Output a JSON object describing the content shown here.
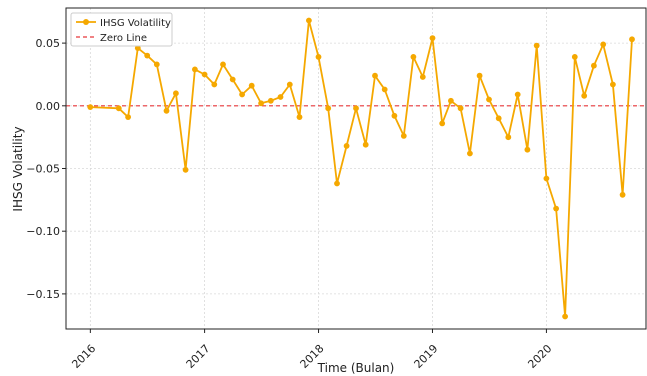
{
  "chart_data": {
    "type": "line",
    "title": "",
    "xlabel": "Time (Bulan)",
    "ylabel": "IHSG Volatility",
    "xlim": [
      "2015-10-15",
      "2020-11-15"
    ],
    "ylim": [
      -0.178,
      0.078
    ],
    "x_ticks": [
      "2016-01-01",
      "2017-01-01",
      "2018-01-01",
      "2019-01-01",
      "2020-01-01"
    ],
    "x_tick_labels": [
      "2016",
      "2017",
      "2018",
      "2019",
      "2020"
    ],
    "y_ticks": [
      0.05,
      0.0,
      -0.05,
      -0.1,
      -0.15
    ],
    "y_tick_labels": [
      "0.05",
      "0.00",
      "−0.05",
      "−0.10",
      "−0.15"
    ],
    "grid": true,
    "legend_position": "upper-left",
    "series": [
      {
        "name": "IHSG Volatility",
        "color": "#f5a800",
        "x": [
          "2016-01-01",
          "2016-04-01",
          "2016-05-01",
          "2016-06-01",
          "2016-07-01",
          "2016-08-01",
          "2016-09-01",
          "2016-10-01",
          "2016-11-01",
          "2016-12-01",
          "2017-01-01",
          "2017-02-01",
          "2017-03-01",
          "2017-04-01",
          "2017-05-01",
          "2017-06-01",
          "2017-07-01",
          "2017-08-01",
          "2017-09-01",
          "2017-10-01",
          "2017-11-01",
          "2017-12-01",
          "2018-01-01",
          "2018-02-01",
          "2018-03-01",
          "2018-04-01",
          "2018-05-01",
          "2018-06-01",
          "2018-07-01",
          "2018-08-01",
          "2018-09-01",
          "2018-10-01",
          "2018-11-01",
          "2018-12-01",
          "2019-01-01",
          "2019-02-01",
          "2019-03-01",
          "2019-04-01",
          "2019-05-01",
          "2019-06-01",
          "2019-07-01",
          "2019-08-01",
          "2019-09-01",
          "2019-10-01",
          "2019-11-01",
          "2019-12-01",
          "2020-01-01",
          "2020-02-01",
          "2020-03-01",
          "2020-04-01",
          "2020-05-01",
          "2020-06-01",
          "2020-07-01",
          "2020-08-01",
          "2020-09-01",
          "2020-10-01"
        ],
        "y": [
          -0.001,
          -0.002,
          -0.009,
          0.046,
          0.04,
          0.033,
          -0.004,
          0.01,
          -0.051,
          0.029,
          0.025,
          0.017,
          0.033,
          0.021,
          0.009,
          0.016,
          0.002,
          0.004,
          0.007,
          0.017,
          -0.009,
          0.068,
          0.039,
          -0.002,
          -0.062,
          -0.032,
          -0.002,
          -0.031,
          0.024,
          0.013,
          -0.008,
          -0.024,
          0.039,
          0.023,
          0.054,
          -0.014,
          0.004,
          -0.002,
          -0.038,
          0.024,
          0.005,
          -0.01,
          -0.025,
          0.009,
          -0.035,
          0.048,
          -0.058,
          -0.082,
          -0.168,
          0.039,
          0.008,
          0.032,
          0.049,
          0.017,
          -0.071,
          0.053
        ]
      },
      {
        "name": "Zero Line",
        "color": "#e8373a",
        "style": "dashed",
        "y_constant": 0
      }
    ]
  }
}
